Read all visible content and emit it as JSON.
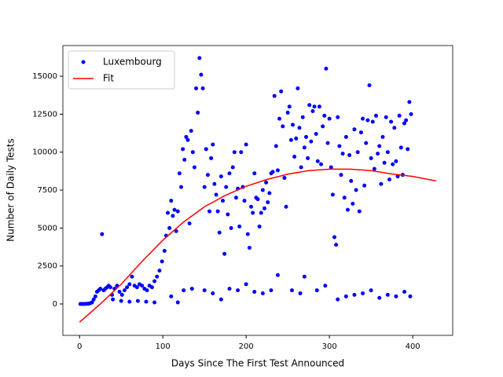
{
  "chart_data": {
    "type": "scatter",
    "xlabel": "Days Since The First Test Announced",
    "ylabel": "Number of Daily Tests",
    "xlim": [
      -20,
      448
    ],
    "ylim": [
      -2070,
      17020
    ],
    "xticks": [
      0,
      100,
      200,
      300,
      400
    ],
    "yticks": [
      0,
      2500,
      5000,
      7500,
      10000,
      12500,
      15000
    ],
    "legend": "upper left",
    "series": [
      {
        "name": "Luxembourg",
        "type": "scatter",
        "color": "#0000ff",
        "x": [
          1,
          3,
          5,
          7,
          9,
          11,
          13,
          15,
          17,
          19,
          21,
          23,
          25,
          27,
          29,
          31,
          33,
          35,
          37,
          39,
          42,
          45,
          48,
          51,
          54,
          57,
          60,
          63,
          66,
          69,
          72,
          75,
          78,
          81,
          84,
          87,
          90,
          93,
          96,
          99,
          40,
          50,
          60,
          70,
          80,
          90,
          110,
          118,
          125,
          135,
          150,
          160,
          170,
          180,
          190,
          200,
          210,
          220,
          230,
          238,
          255,
          265,
          270,
          285,
          295,
          310,
          320,
          330,
          340,
          350,
          360,
          370,
          380,
          390,
          397,
          102,
          104,
          106,
          108,
          110,
          112,
          114,
          116,
          118,
          120,
          122,
          124,
          126,
          128,
          130,
          132,
          134,
          136,
          138,
          140,
          142,
          144,
          146,
          148,
          150,
          152,
          154,
          156,
          158,
          160,
          162,
          164,
          166,
          168,
          170,
          172,
          174,
          176,
          178,
          180,
          182,
          184,
          186,
          188,
          190,
          192,
          194,
          196,
          198,
          200,
          202,
          204,
          206,
          208,
          210,
          212,
          214,
          216,
          218,
          220,
          222,
          224,
          226,
          228,
          230,
          232,
          234,
          236,
          238,
          240,
          242,
          244,
          246,
          248,
          250,
          252,
          254,
          256,
          258,
          260,
          262,
          264,
          266,
          268,
          270,
          272,
          274,
          276,
          278,
          280,
          282,
          284,
          286,
          288,
          290,
          292,
          294,
          296,
          298,
          300,
          302,
          304,
          306,
          308,
          310,
          312,
          314,
          316,
          318,
          320,
          322,
          324,
          326,
          328,
          330,
          332,
          334,
          336,
          338,
          340,
          342,
          344,
          346,
          348,
          350,
          352,
          354,
          356,
          358,
          360,
          362,
          364,
          366,
          368,
          370,
          372,
          374,
          376,
          378,
          380,
          382,
          384,
          386,
          388,
          390,
          392,
          394,
          396,
          398
        ],
        "values": [
          0,
          0,
          0,
          0,
          10,
          20,
          50,
          100,
          300,
          500,
          800,
          900,
          1000,
          4600,
          900,
          1000,
          1100,
          1200,
          1100,
          600,
          1000,
          1200,
          800,
          600,
          900,
          1100,
          1300,
          1800,
          1200,
          1100,
          1300,
          1200,
          1000,
          900,
          1200,
          1100,
          1500,
          1800,
          2200,
          2800,
          300,
          200,
          150,
          200,
          150,
          100,
          500,
          100,
          900,
          1000,
          900,
          700,
          300,
          1000,
          900,
          1300,
          800,
          700,
          900,
          1900,
          900,
          700,
          1800,
          900,
          1200,
          300,
          500,
          600,
          700,
          900,
          400,
          600,
          500,
          800,
          500,
          3500,
          4500,
          6000,
          5000,
          6800,
          5800,
          6200,
          4800,
          6100,
          8600,
          7700,
          10200,
          9500,
          11000,
          10800,
          5300,
          11400,
          10000,
          9000,
          14200,
          12600,
          16200,
          15100,
          14200,
          7700,
          10200,
          8500,
          6100,
          9600,
          10500,
          7900,
          7200,
          6100,
          4700,
          8400,
          6800,
          3300,
          7700,
          5900,
          8600,
          5000,
          9000,
          10000,
          7000,
          7600,
          5100,
          10000,
          7700,
          6800,
          10500,
          4600,
          3700,
          6400,
          6000,
          8600,
          7000,
          6900,
          5100,
          6000,
          7500,
          6300,
          8000,
          6700,
          7300,
          8600,
          8700,
          13700,
          10400,
          8800,
          12200,
          14000,
          11700,
          8300,
          6400,
          12600,
          13000,
          10800,
          11800,
          9700,
          10900,
          14200,
          11600,
          9000,
          12300,
          10300,
          11000,
          9600,
          13100,
          10700,
          12700,
          13000,
          11200,
          9400,
          13000,
          9200,
          11700,
          12400,
          15500,
          10600,
          12200,
          9000,
          7200,
          4400,
          3900,
          12300,
          10400,
          8500,
          9900,
          7000,
          11000,
          6200,
          9800,
          8100,
          6600,
          11500,
          7500,
          10000,
          6100,
          11300,
          12200,
          7800,
          10600,
          12100,
          14400,
          9600,
          12000,
          8900,
          12400,
          9900,
          10400,
          7900,
          11000,
          9300,
          12300,
          10000,
          8200,
          12000,
          9200,
          11600,
          9400,
          8400,
          12400,
          10300,
          8500,
          11900,
          12100,
          10200,
          13300,
          12500
        ]
      },
      {
        "name": "Fit",
        "type": "line",
        "color": "#ff0000",
        "x": [
          0,
          25,
          50,
          75,
          100,
          125,
          150,
          175,
          200,
          225,
          250,
          275,
          300,
          325,
          350,
          375,
          400,
          428
        ],
        "values": [
          -1200,
          0,
          1300,
          2800,
          4200,
          5400,
          6400,
          7150,
          7750,
          8200,
          8550,
          8780,
          8880,
          8880,
          8780,
          8560,
          8400,
          8100
        ]
      }
    ]
  }
}
